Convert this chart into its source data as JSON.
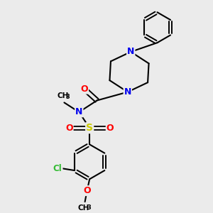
{
  "bg_color": "#ebebeb",
  "atom_colors": {
    "C": "#000000",
    "N": "#0000ee",
    "O": "#ff0000",
    "S": "#cccc00",
    "Cl": "#33bb33",
    "H": "#000000"
  },
  "figsize": [
    3.0,
    3.0
  ],
  "dpi": 100
}
